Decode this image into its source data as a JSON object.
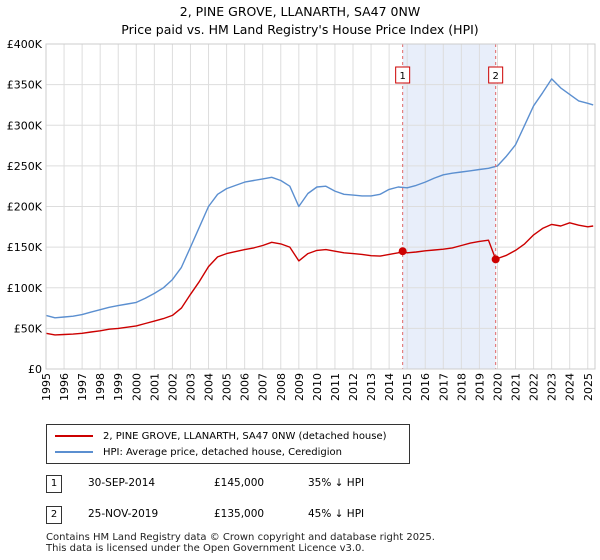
{
  "header": {
    "title_line1": "2, PINE GROVE, LLANARTH, SA47 0NW",
    "title_line2": "Price paid vs. HM Land Registry's House Price Index (HPI)"
  },
  "chart_data": {
    "type": "line",
    "title": "2, PINE GROVE, LLANARTH, SA47 0NW — Price paid vs. HM Land Registry's House Price Index (HPI)",
    "xlabel": "",
    "ylabel": "",
    "xlim": [
      1995,
      2025.4
    ],
    "ylim": [
      0,
      400000
    ],
    "grid": true,
    "legend_position": "bottom-left",
    "y_ticks": [
      {
        "value": 0,
        "label": "£0"
      },
      {
        "value": 50000,
        "label": "£50K"
      },
      {
        "value": 100000,
        "label": "£100K"
      },
      {
        "value": 150000,
        "label": "£150K"
      },
      {
        "value": 200000,
        "label": "£200K"
      },
      {
        "value": 250000,
        "label": "£250K"
      },
      {
        "value": 300000,
        "label": "£300K"
      },
      {
        "value": 350000,
        "label": "£350K"
      },
      {
        "value": 400000,
        "label": "£400K"
      }
    ],
    "x_ticks": [
      "1995",
      "1996",
      "1997",
      "1998",
      "1999",
      "2000",
      "2001",
      "2002",
      "2003",
      "2004",
      "2005",
      "2006",
      "2007",
      "2008",
      "2009",
      "2010",
      "2011",
      "2012",
      "2013",
      "2014",
      "2015",
      "2016",
      "2017",
      "2018",
      "2019",
      "2020",
      "2021",
      "2022",
      "2023",
      "2024",
      "2025"
    ],
    "series": [
      {
        "name": "2, PINE GROVE, LLANARTH, SA47 0NW (detached house)",
        "color": "#cc0000",
        "x": [
          1995.0,
          1995.5,
          1996.0,
          1996.5,
          1997.0,
          1997.5,
          1998.0,
          1998.5,
          1999.0,
          1999.5,
          2000.0,
          2000.5,
          2001.0,
          2001.5,
          2002.0,
          2002.5,
          2003.0,
          2003.5,
          2004.0,
          2004.5,
          2005.0,
          2005.5,
          2006.0,
          2006.5,
          2007.0,
          2007.5,
          2008.0,
          2008.5,
          2009.0,
          2009.5,
          2010.0,
          2010.5,
          2011.0,
          2011.5,
          2012.0,
          2012.5,
          2013.0,
          2013.5,
          2014.0,
          2014.5,
          2014.75,
          2015.0,
          2015.5,
          2016.0,
          2016.5,
          2017.0,
          2017.5,
          2018.0,
          2018.5,
          2019.0,
          2019.5,
          2019.9,
          2020.0,
          2020.5,
          2021.0,
          2021.5,
          2022.0,
          2022.5,
          2023.0,
          2023.5,
          2024.0,
          2024.5,
          2025.0,
          2025.3
        ],
        "values": [
          44000,
          42000,
          42500,
          43000,
          44000,
          45500,
          47000,
          49000,
          50000,
          51500,
          53000,
          56000,
          59000,
          62000,
          66000,
          75000,
          92000,
          108000,
          126000,
          138000,
          142000,
          144500,
          147000,
          149000,
          152000,
          156000,
          154000,
          150000,
          133000,
          142000,
          146000,
          147000,
          145000,
          143000,
          142000,
          141000,
          139500,
          139000,
          141000,
          143000,
          145000,
          143000,
          144000,
          145500,
          146500,
          147500,
          149000,
          152000,
          155000,
          157000,
          158500,
          135000,
          136000,
          140000,
          146000,
          154000,
          165000,
          173000,
          178000,
          176000,
          180000,
          177000,
          175000,
          176000
        ]
      },
      {
        "name": "HPI: Average price, detached house, Ceredigion",
        "color": "#5b8fd0",
        "x": [
          1995.0,
          1995.5,
          1996.0,
          1996.5,
          1997.0,
          1997.5,
          1998.0,
          1998.5,
          1999.0,
          1999.5,
          2000.0,
          2000.5,
          2001.0,
          2001.5,
          2002.0,
          2002.5,
          2003.0,
          2003.5,
          2004.0,
          2004.5,
          2005.0,
          2005.5,
          2006.0,
          2006.5,
          2007.0,
          2007.5,
          2008.0,
          2008.5,
          2009.0,
          2009.5,
          2010.0,
          2010.5,
          2011.0,
          2011.5,
          2012.0,
          2012.5,
          2013.0,
          2013.5,
          2014.0,
          2014.5,
          2015.0,
          2015.5,
          2016.0,
          2016.5,
          2017.0,
          2017.5,
          2018.0,
          2018.5,
          2019.0,
          2019.5,
          2020.0,
          2020.5,
          2021.0,
          2021.5,
          2022.0,
          2022.5,
          2023.0,
          2023.5,
          2024.0,
          2024.5,
          2025.0,
          2025.3
        ],
        "values": [
          66000,
          63000,
          64000,
          65000,
          67000,
          70000,
          73000,
          76000,
          78000,
          80000,
          82000,
          87000,
          93000,
          100000,
          110000,
          125000,
          150000,
          175000,
          200000,
          215000,
          222000,
          226000,
          230000,
          232000,
          234000,
          236000,
          232000,
          225000,
          200000,
          216000,
          224000,
          225000,
          219000,
          215000,
          214000,
          213000,
          213000,
          215000,
          221000,
          224000,
          223000,
          226000,
          230000,
          235000,
          239000,
          241000,
          242500,
          244000,
          245500,
          247000,
          250000,
          262000,
          276000,
          300000,
          324000,
          340000,
          357000,
          346000,
          338000,
          330000,
          327000,
          325000
        ]
      }
    ],
    "sales": [
      {
        "id": "1",
        "x": 2014.75,
        "value": 145000
      },
      {
        "id": "2",
        "x": 2019.9,
        "value": 135000
      }
    ],
    "shaded_region": [
      2014.75,
      2019.9
    ]
  },
  "legend": {
    "property_label": "2, PINE GROVE, LLANARTH, SA47 0NW (detached house)",
    "hpi_label": "HPI: Average price, detached house, Ceredigion"
  },
  "sales_table": [
    {
      "id": "1",
      "date": "30-SEP-2014",
      "price": "£145,000",
      "hpi_diff": "35% ↓ HPI"
    },
    {
      "id": "2",
      "date": "25-NOV-2019",
      "price": "£135,000",
      "hpi_diff": "45% ↓ HPI"
    }
  ],
  "footer": {
    "line1": "Contains HM Land Registry data © Crown copyright and database right 2025.",
    "line2": "This data is licensed under the Open Government Licence v3.0."
  },
  "colors": {
    "property": "#cc0000",
    "hpi": "#5b8fd0",
    "shade": "#e8eefa",
    "grid": "#dddddd",
    "vline": "#e06666"
  }
}
